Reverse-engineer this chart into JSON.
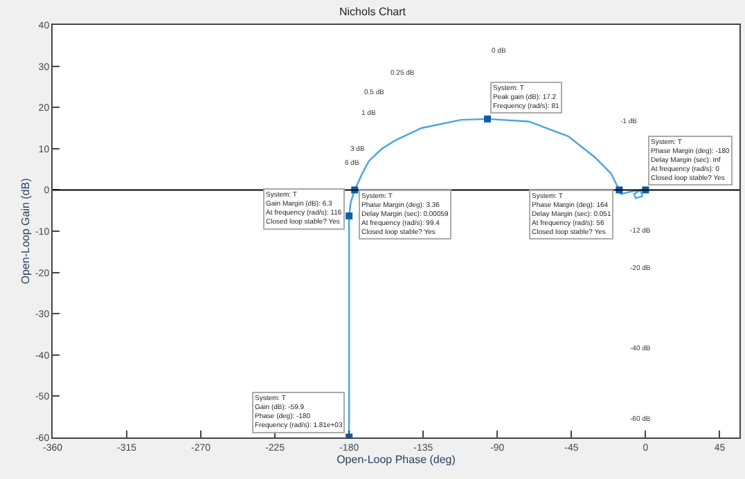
{
  "chart_data": {
    "type": "line",
    "title": "Nichols Chart",
    "xlabel": "Open-Loop Phase (deg)",
    "ylabel": "Open-Loop Gain (dB)",
    "xlim": [
      -360,
      57
    ],
    "xticks": [
      -360,
      -315,
      -270,
      -225,
      -180,
      -135,
      -90,
      -45,
      0,
      45
    ],
    "ylim": [
      -60,
      40
    ],
    "yticks": [
      -60,
      -50,
      -40,
      -30,
      -20,
      -10,
      0,
      10,
      20,
      30,
      40
    ],
    "grid": false,
    "series": [
      {
        "color": "#4aa3df",
        "x": [
          -180,
          -180,
          -180,
          -180,
          -179,
          -176.6,
          -172,
          -168,
          -160,
          -152,
          -136,
          -112,
          -96,
          -71,
          -47,
          -31,
          -21,
          -16,
          -15,
          -10,
          -3,
          -2,
          -6,
          -7,
          -3,
          0
        ],
        "values": [
          -60,
          -30,
          -10,
          -6.3,
          -3,
          0,
          4,
          7,
          10,
          12,
          15,
          17,
          17.2,
          16.6,
          13,
          8,
          4,
          0,
          -1,
          -0.5,
          0,
          -1.5,
          -2,
          -1,
          0,
          0
        ]
      },
      {
        "type": "scatter",
        "marker": "square",
        "color": "#0b5ea8",
        "x": [
          -96,
          -180,
          -176.6,
          -16,
          0,
          -180
        ],
        "values": [
          17.2,
          -6.3,
          0,
          0,
          0,
          -59.9
        ]
      }
    ],
    "ref_lines": [
      {
        "axis": "y",
        "value": 0,
        "color": "#000000"
      }
    ],
    "annotations": [
      {
        "text": "System: T\nPeak gain (dB): 17.2\nFrequency (rad/s): 81",
        "x": -96,
        "y": 17.2
      },
      {
        "text": "System: T\nGain Margin (dB): 6.3\nAt frequency (rad/s): 116\nClosed loop stable? Yes",
        "x": -180,
        "y": -6.3
      },
      {
        "text": "System: T\nPhase Margin (deg): 3.36\nDelay Margin (sec): 0.00059\nAt frequency (rad/s): 99.4\nClosed loop stable? Yes",
        "x": -176.6,
        "y": 0
      },
      {
        "text": "System: T\nPhase Margin (deg): 164\nDelay Margin (sec): 0.051\nAt frequency (rad/s): 56\nClosed loop stable? Yes",
        "x": -16,
        "y": 0
      },
      {
        "text": "System: T\nPhase Margin (deg): -180\nDelay Margin (sec): Inf\nAt frequency (rad/s): 0\nClosed loop stable? Yes",
        "x": 0,
        "y": 0
      },
      {
        "text": "System: T\nGain (dB): -59.9\nPhase (deg): -180\nFrequency (rad/s): 1.81e+03",
        "x": -180,
        "y": -59.9
      },
      "0 dB",
      "0.25 dB",
      "0.5 dB",
      "1 dB",
      "3 dB",
      "6 dB",
      "-1 dB",
      "-12 dB",
      "-20 dB",
      "-40 dB",
      "-60 dB"
    ]
  }
}
